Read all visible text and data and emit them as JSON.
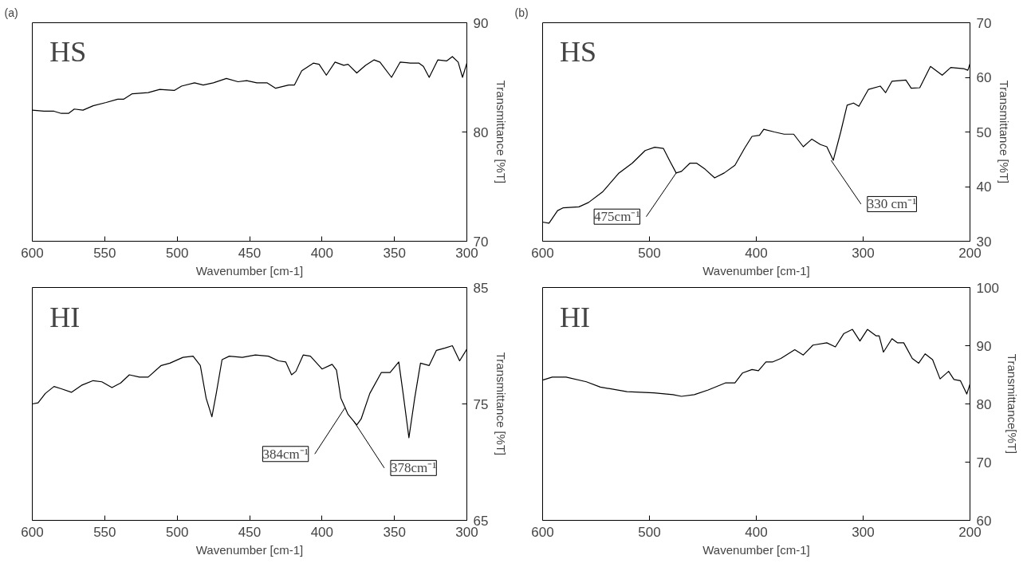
{
  "chart_data": [
    {
      "type": "line",
      "title": "(a)",
      "xlabel": "Wavenumber [cm-1]",
      "ylabel": "Transmittance [%T]",
      "annotations": [
        "HS"
      ],
      "grid": false,
      "xlim": [
        600,
        300
      ],
      "xticks": [
        600,
        550,
        500,
        450,
        400,
        350,
        300
      ],
      "ylim": [
        70,
        90
      ],
      "yticks": [
        70,
        80,
        90
      ],
      "series": [
        {
          "color": "#000000",
          "x": [
            600,
            592,
            585,
            580,
            575,
            571,
            565,
            558,
            549,
            541,
            537,
            531,
            520,
            512,
            502,
            497,
            488,
            482,
            475,
            466,
            458,
            452,
            445,
            438,
            432,
            423,
            419,
            414,
            406,
            402,
            397,
            391,
            385,
            382,
            376,
            370,
            364,
            360,
            352,
            346,
            339,
            333,
            330,
            326,
            320,
            314,
            310,
            306,
            303,
            300
          ],
          "values": [
            82.0,
            81.9,
            81.9,
            81.7,
            81.7,
            82.1,
            82.0,
            82.4,
            82.7,
            83.0,
            83.0,
            83.5,
            83.6,
            83.9,
            83.8,
            84.2,
            84.5,
            84.3,
            84.5,
            84.9,
            84.6,
            84.7,
            84.5,
            84.5,
            84.0,
            84.3,
            84.3,
            85.6,
            86.3,
            86.2,
            85.2,
            86.4,
            86.1,
            86.2,
            85.4,
            86.1,
            86.6,
            86.4,
            85.0,
            86.4,
            86.3,
            86.3,
            86.0,
            85.0,
            86.6,
            86.5,
            86.9,
            86.4,
            85.0,
            86.3
          ]
        }
      ]
    },
    {
      "type": "line",
      "xlabel": "Wavenumber [cm-1]",
      "ylabel": "Transmittance [%T]",
      "annotations": [
        "HI",
        {
          "text": "384cm⁻¹",
          "x": 384,
          "y": 74.7
        },
        {
          "text": "378cm⁻¹",
          "x": 378,
          "y": 73.5
        }
      ],
      "grid": false,
      "xlim": [
        600,
        300
      ],
      "xticks": [
        600,
        550,
        500,
        450,
        400,
        350,
        300
      ],
      "ylim": [
        65,
        85
      ],
      "yticks": [
        65,
        75,
        85
      ],
      "series": [
        {
          "color": "#000000",
          "x": [
            600,
            596,
            591,
            585,
            580,
            573,
            566,
            558,
            552,
            545,
            539,
            533,
            526,
            520,
            511,
            505,
            496,
            489,
            484,
            480,
            476,
            473,
            469,
            464,
            455,
            446,
            437,
            430,
            425,
            421,
            418,
            413,
            408,
            400,
            393,
            390,
            387,
            382,
            376,
            373,
            367,
            359,
            353,
            347,
            344,
            340,
            336,
            332,
            326,
            321,
            315,
            310,
            305,
            300
          ],
          "values": [
            75.0,
            75.1,
            75.9,
            76.5,
            76.3,
            76.0,
            76.6,
            77.0,
            76.9,
            76.4,
            76.8,
            77.5,
            77.3,
            77.3,
            78.3,
            78.5,
            79.0,
            79.1,
            78.3,
            75.5,
            73.9,
            75.9,
            78.8,
            79.1,
            79.0,
            79.2,
            79.1,
            78.7,
            78.6,
            77.5,
            77.8,
            79.2,
            79.1,
            78.0,
            78.4,
            77.9,
            75.5,
            74.1,
            73.2,
            73.7,
            75.9,
            77.7,
            77.7,
            78.6,
            75.9,
            72.1,
            75.5,
            78.5,
            78.3,
            79.6,
            79.8,
            80.0,
            78.7,
            79.7
          ]
        }
      ]
    },
    {
      "type": "line",
      "title": "(b)",
      "xlabel": "Wavenumber [cm-1]",
      "ylabel": "Transmittance [%T]",
      "annotations": [
        "HS",
        {
          "text": "475cm⁻¹",
          "x": 475,
          "y": 42.5
        },
        {
          "text": "330 cm⁻¹",
          "x": 330,
          "y": 44.8
        }
      ],
      "grid": false,
      "xlim": [
        600,
        200
      ],
      "xticks": [
        600,
        500,
        400,
        300,
        200
      ],
      "ylim": [
        30,
        70
      ],
      "yticks": [
        30,
        40,
        50,
        60,
        70
      ],
      "series": [
        {
          "color": "#000000",
          "x": [
            600,
            594,
            586,
            581,
            566,
            557,
            544,
            529,
            516,
            504,
            495,
            487,
            481,
            475,
            470,
            462,
            456,
            448,
            439,
            430,
            420,
            411,
            404,
            397,
            393,
            383,
            374,
            365,
            356,
            348,
            340,
            334,
            328,
            321,
            315,
            309,
            304,
            295,
            284,
            279,
            273,
            260,
            255,
            247,
            237,
            226,
            218,
            206,
            202,
            200
          ],
          "values": [
            33.5,
            33.3,
            35.6,
            36.1,
            36.3,
            37.1,
            39.0,
            42.4,
            44.3,
            46.6,
            47.2,
            47.0,
            44.7,
            42.5,
            42.8,
            44.3,
            44.3,
            43.2,
            41.6,
            42.5,
            43.9,
            47.0,
            49.2,
            49.4,
            50.5,
            50.0,
            49.6,
            49.6,
            47.3,
            48.7,
            47.7,
            47.3,
            44.8,
            50.0,
            54.9,
            55.3,
            54.7,
            57.8,
            58.4,
            57.2,
            59.3,
            59.5,
            58.0,
            58.1,
            62.0,
            60.4,
            61.8,
            61.6,
            61.3,
            62.5
          ]
        }
      ]
    },
    {
      "type": "line",
      "xlabel": "Wavenumber [cm-1]",
      "ylabel": "Transmittance[%T]",
      "annotations": [
        "HI"
      ],
      "grid": false,
      "xlim": [
        600,
        200
      ],
      "xticks": [
        600,
        500,
        400,
        300,
        200
      ],
      "ylim": [
        60,
        100
      ],
      "yticks": [
        60,
        70,
        80,
        90,
        100
      ],
      "series": [
        {
          "color": "#000000",
          "x": [
            600,
            591,
            578,
            559,
            546,
            521,
            496,
            478,
            470,
            458,
            445,
            429,
            420,
            413,
            404,
            398,
            391,
            385,
            377,
            364,
            356,
            347,
            334,
            326,
            318,
            310,
            303,
            296,
            288,
            285,
            281,
            273,
            268,
            262,
            254,
            248,
            242,
            235,
            228,
            220,
            215,
            209,
            203,
            200
          ],
          "values": [
            84.1,
            84.6,
            84.6,
            83.8,
            82.9,
            82.1,
            81.9,
            81.6,
            81.3,
            81.6,
            82.4,
            83.6,
            83.6,
            85.3,
            85.9,
            85.7,
            87.2,
            87.2,
            87.8,
            89.3,
            88.4,
            90.1,
            90.5,
            89.8,
            92.1,
            92.8,
            90.8,
            92.8,
            91.7,
            91.7,
            88.9,
            91.2,
            90.5,
            90.5,
            87.8,
            87.0,
            88.6,
            87.6,
            84.3,
            85.6,
            84.2,
            84.0,
            81.7,
            83.4
          ]
        }
      ]
    }
  ]
}
